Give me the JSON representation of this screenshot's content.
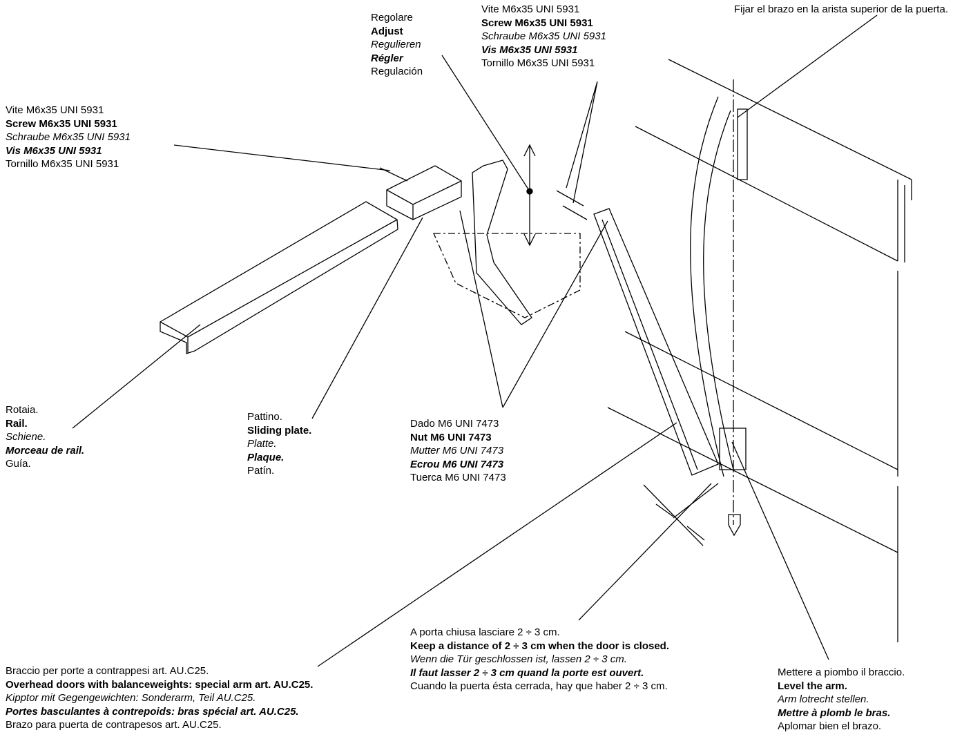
{
  "labels": [
    {
      "lines": [
        "Regolare",
        "Adjust",
        "Regulieren",
        "Régler",
        "Regulación"
      ]
    },
    {
      "lines": [
        "Vite M6x35 UNI 5931",
        "Screw M6x35 UNI 5931",
        "Schraube M6x35 UNI 5931",
        "Vis M6x35 UNI 5931",
        "Tornillo M6x35 UNI 5931"
      ]
    },
    {
      "lines": [
        "Fijar el brazo en la arista superior de la puerta."
      ]
    },
    {
      "lines": [
        "Vite M6x35 UNI 5931",
        "Screw M6x35 UNI 5931",
        "Schraube M6x35 UNI 5931",
        "Vis M6x35 UNI 5931",
        "Tornillo M6x35 UNI 5931"
      ]
    },
    {
      "lines": [
        "Rotaia.",
        "Rail.",
        "Schiene.",
        "Morceau de rail.",
        "Guía."
      ]
    },
    {
      "lines": [
        "Pattino.",
        "Sliding plate.",
        "Platte.",
        "Plaque.",
        "Patín."
      ]
    },
    {
      "lines": [
        "Dado M6 UNI 7473",
        "Nut M6 UNI 7473",
        "Mutter M6 UNI 7473",
        "Ecrou M6 UNI 7473",
        "Tuerca M6 UNI 7473"
      ]
    },
    {
      "lines": [
        "A porta chiusa lasciare 2 ÷ 3 cm.",
        "Keep a distance of 2 ÷ 3 cm when the door is closed.",
        "Wenn die Tür geschlossen ist, lassen 2 ÷ 3 cm.",
        "Il faut lasser 2 ÷ 3 cm quand la porte est ouvert.",
        "Cuando la puerta ésta cerrada, hay que haber 2 ÷ 3 cm."
      ]
    },
    {
      "lines": [
        "Braccio per porte a contrappesi art. AU.C25.",
        "Overhead doors with balanceweights: special arm art. AU.C25.",
        "Kipptor mit Gegengewichten: Sonderarm, Teil AU.C25.",
        "Portes basculantes à contrepoids: bras spécial art. AU.C25.",
        "Brazo para puerta de contrapesos art. AU.C25."
      ]
    },
    {
      "lines": [
        "Mettere a piombo il braccio.",
        "Level the arm.",
        "Arm lotrecht stellen.",
        "Mettre à plomb le bras.",
        "Aplomar bien el brazo."
      ]
    }
  ]
}
